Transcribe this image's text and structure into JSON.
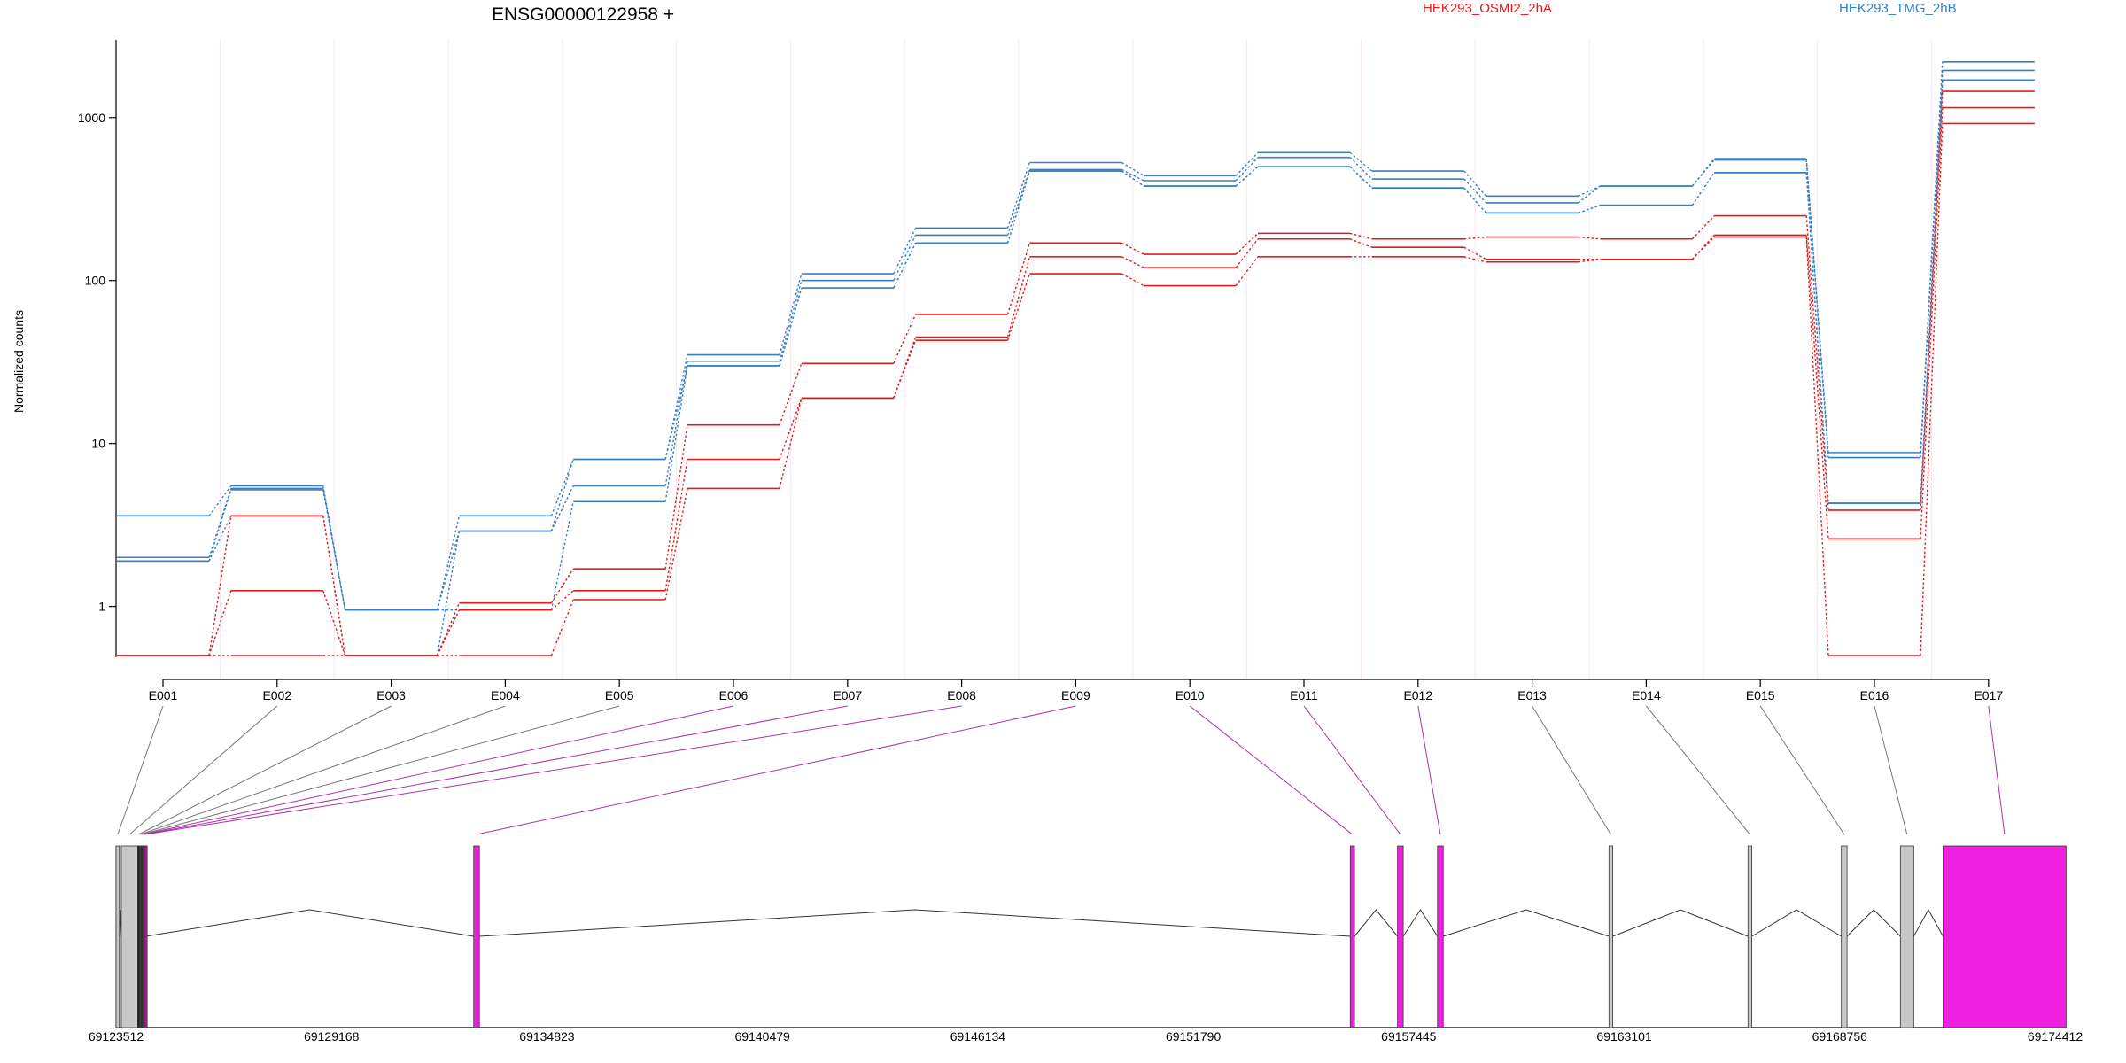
{
  "chart_data": {
    "type": "line",
    "title": "ENSG00000122958 +",
    "ylabel": "Normalized counts",
    "xlabel": "",
    "y_scale": "log",
    "ylim": [
      0.5,
      3000
    ],
    "y_ticks": [
      1,
      10,
      100,
      1000
    ],
    "y_tick_labels": [
      "1",
      "10",
      "100",
      "1000"
    ],
    "categories": [
      "E001",
      "E002",
      "E003",
      "E004",
      "E005",
      "E006",
      "E007",
      "E008",
      "E009",
      "E010",
      "E011",
      "E012",
      "E013",
      "E014",
      "E015",
      "E016",
      "E017"
    ],
    "legend": [
      {
        "name": "HEK293_OSMI2_2hA",
        "color": "#e31a1c"
      },
      {
        "name": "HEK293_TMG_2hB",
        "color": "#3a7fbf"
      }
    ],
    "series": [
      {
        "group": "HEK293_TMG_2hB",
        "color": "#3a7fbf",
        "values": [
          3.6,
          5.5,
          0.95,
          3.6,
          8,
          35,
          110,
          210,
          530,
          440,
          610,
          470,
          330,
          380,
          560,
          8.8,
          2200
        ]
      },
      {
        "group": "HEK293_TMG_2hB",
        "color": "#3a7fbf",
        "values": [
          2.0,
          5.3,
          0.95,
          2.9,
          5.5,
          32,
          100,
          190,
          480,
          410,
          570,
          420,
          300,
          380,
          550,
          8.2,
          1950
        ]
      },
      {
        "group": "HEK293_TMG_2hB",
        "color": "#3a7fbf",
        "values": [
          1.9,
          5.2,
          0.95,
          0.95,
          4.4,
          30,
          90,
          170,
          470,
          380,
          500,
          370,
          260,
          290,
          460,
          4.3,
          1700
        ]
      },
      {
        "group": "HEK293_TMG_2hB",
        "color": "#3a7fbf",
        "values": [
          1.9,
          3.6,
          0.5,
          2.9,
          8,
          30,
          90,
          170,
          470,
          380,
          500,
          370,
          260,
          290,
          460,
          4.3,
          1700
        ]
      },
      {
        "group": "HEK293_OSMI2_2hA",
        "color": "#e31a1c",
        "values": [
          0.5,
          3.6,
          0.5,
          1.05,
          1.7,
          13,
          31,
          62,
          170,
          145,
          195,
          180,
          185,
          180,
          250,
          3.9,
          1450
        ]
      },
      {
        "group": "HEK293_OSMI2_2hA",
        "color": "#e31a1c",
        "values": [
          0.5,
          1.25,
          0.5,
          0.95,
          1.25,
          8,
          19,
          45,
          140,
          120,
          180,
          160,
          135,
          135,
          190,
          2.6,
          1150
        ]
      },
      {
        "group": "HEK293_OSMI2_2hA",
        "color": "#e31a1c",
        "values": [
          0.5,
          0.5,
          0.5,
          0.5,
          1.1,
          5.3,
          19,
          43,
          110,
          93,
          140,
          140,
          130,
          135,
          185,
          0.5,
          920
        ]
      }
    ],
    "genome_axis": {
      "ticks": [
        "69123512",
        "69129168",
        "69134823",
        "69140479",
        "69146134",
        "69151790",
        "69157445",
        "69163101",
        "69168756",
        "69174412"
      ],
      "range": [
        69123512,
        69174412
      ],
      "exons": [
        {
          "id": "E001",
          "start": 69123512,
          "end": 69123600,
          "color": "#c8c8c8"
        },
        {
          "id": "E002",
          "start": 69123650,
          "end": 69124080,
          "color": "#c8c8c8"
        },
        {
          "id": "E003",
          "start": 69124080,
          "end": 69124130,
          "color": "#222222"
        },
        {
          "id": "E004",
          "start": 69124130,
          "end": 69124170,
          "color": "#444444"
        },
        {
          "id": "E005",
          "start": 69124170,
          "end": 69124200,
          "color": "#222222"
        },
        {
          "id": "E006",
          "start": 69124200,
          "end": 69124230,
          "color": "#aa1a99"
        },
        {
          "id": "E007",
          "start": 69124230,
          "end": 69124260,
          "color": "#8a1a7a"
        },
        {
          "id": "E008",
          "start": 69124260,
          "end": 69124290,
          "color": "#aa1a99"
        },
        {
          "id": "E009",
          "start": 69132900,
          "end": 69133050,
          "color": "#f020e0"
        },
        {
          "id": "E010",
          "start": 69155910,
          "end": 69156020,
          "color": "#f020e0"
        },
        {
          "id": "E011",
          "start": 69157150,
          "end": 69157300,
          "color": "#f020e0"
        },
        {
          "id": "E012",
          "start": 69158200,
          "end": 69158350,
          "color": "#f020e0"
        },
        {
          "id": "E013",
          "start": 69162700,
          "end": 69162800,
          "color": "#c8c8c8"
        },
        {
          "id": "E014",
          "start": 69166350,
          "end": 69166450,
          "color": "#c8c8c8"
        },
        {
          "id": "E015",
          "start": 69168800,
          "end": 69168950,
          "color": "#c8c8c8"
        },
        {
          "id": "E016",
          "start": 69170350,
          "end": 69170700,
          "color": "#c8c8c8"
        },
        {
          "id": "E017",
          "start": 69171470,
          "end": 69174700,
          "color": "#f020e0"
        }
      ]
    }
  }
}
